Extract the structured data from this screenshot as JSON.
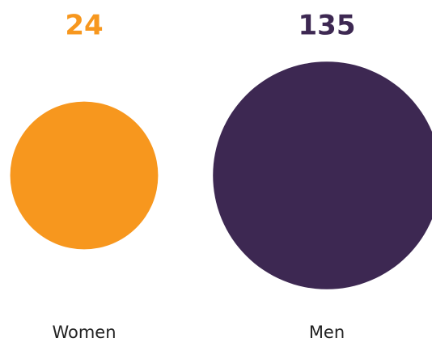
{
  "chart_data": {
    "type": "bubble",
    "categories": [
      "Women",
      "Men"
    ],
    "values": [
      24,
      135
    ],
    "colors": [
      "#f7971e",
      "#3d2852"
    ]
  }
}
